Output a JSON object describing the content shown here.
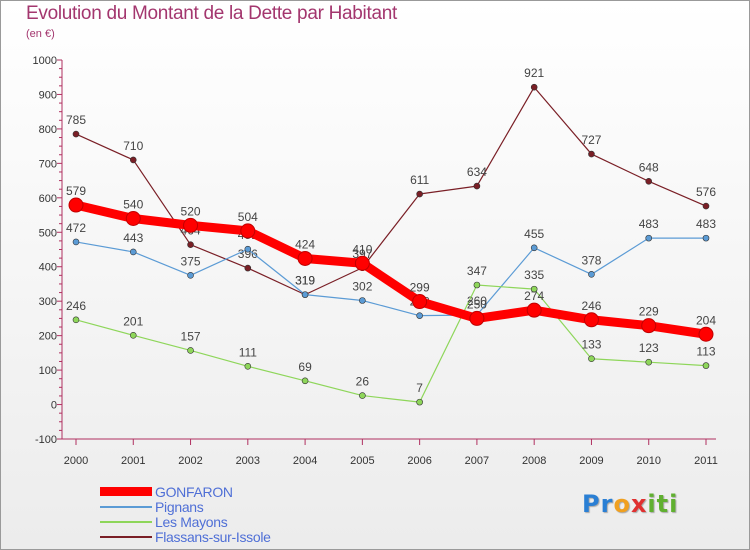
{
  "title": "Evolution du Montant de la Dette par Habitant",
  "unit": "(en €)",
  "logo": {
    "letters": [
      "P",
      "r",
      "o",
      "x",
      "i",
      "t",
      "i"
    ],
    "colors": [
      "#2a7fd4",
      "#2a7fd4",
      "#f0a020",
      "#e03030",
      "#60b030",
      "#60b030",
      "#60b030"
    ]
  },
  "chart_data": {
    "type": "line",
    "x": [
      "2000",
      "2001",
      "2002",
      "2003",
      "2004",
      "2005",
      "2006",
      "2007",
      "2008",
      "2009",
      "2010",
      "2011"
    ],
    "ylim": [
      -100,
      1000
    ],
    "yticks": [
      "-100",
      "0",
      "100",
      "200",
      "300",
      "400",
      "500",
      "600",
      "700",
      "800",
      "900",
      "1000"
    ],
    "grid": false,
    "legend_position": "bottom-left",
    "series": [
      {
        "name": "Flassans-sur-Issole",
        "color": "#7a1f26",
        "width": 1.2,
        "values": [
          785,
          710,
          464,
          396,
          319,
          397,
          611,
          634,
          921,
          727,
          648,
          576
        ],
        "labels": [
          "785",
          "710",
          "464",
          "396",
          "319",
          "397",
          "611",
          "634",
          "921",
          "727",
          "648",
          "576"
        ]
      },
      {
        "name": "Pignans",
        "color": "#5b9bd5",
        "width": 1.2,
        "values": [
          472,
          443,
          375,
          451,
          319,
          302,
          258,
          260,
          455,
          378,
          483,
          483
        ],
        "labels": [
          "472",
          "443",
          "375",
          "451",
          "319",
          "302",
          "258",
          "260",
          "455",
          "378",
          "483",
          "483"
        ]
      },
      {
        "name": "Les Mayons",
        "color": "#8ed65a",
        "width": 1.2,
        "values": [
          246,
          201,
          157,
          111,
          69,
          26,
          7,
          347,
          335,
          133,
          123,
          113
        ],
        "labels": [
          "246",
          "201",
          "157",
          "111",
          "69",
          "26",
          "7",
          "347",
          "335",
          "133",
          "123",
          "113"
        ]
      },
      {
        "name": "GONFARON",
        "color": "#ff0000",
        "width": 9,
        "values": [
          579,
          540,
          520,
          504,
          424,
          410,
          299,
          250,
          274,
          246,
          229,
          204
        ],
        "labels": [
          "579",
          "540",
          "520",
          "504",
          "424",
          "410",
          "299",
          "250",
          "274",
          "246",
          "229",
          "204"
        ]
      }
    ],
    "legend_order": [
      "GONFARON",
      "Pignans",
      "Les Mayons",
      "Flassans-sur-Issole"
    ]
  }
}
